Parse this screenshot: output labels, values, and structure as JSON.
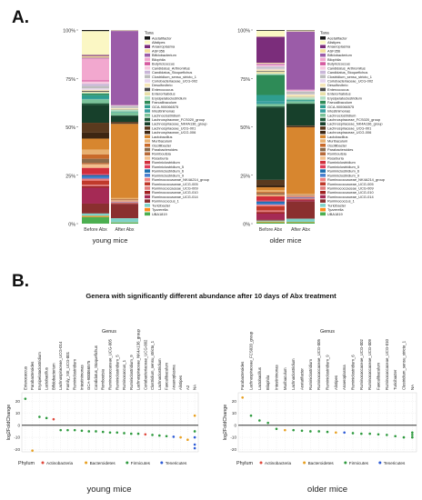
{
  "panel_a": {
    "label": "A.",
    "legend_title": "Taxa",
    "taxa": [
      "Acetatifactor",
      "Alistipes",
      "Anaeroplasma",
      "ASF356",
      "Bifidobacterium",
      "Bilophila",
      "Butyricicoccus",
      "Candidatus_Arthromitus",
      "Candidatus_Stoquefichus",
      "Clostridium_sensu_stricto_1",
      "Coriobacteriaceae_UCG-002",
      "Desulfovibrio",
      "Enterococcus",
      "Enterorhabdus",
      "Erysipelatoclostridium",
      "Faecalibaculum",
      "GCA-900066575",
      "Intestinimonas",
      "Lachnoclostridium",
      "Lachnospiraceae_FCS020_group",
      "Lachnospiraceae_NK4A136_group",
      "Lachnospiraceae_UCG-001",
      "Lachnospiraceae_UCG-006",
      "Lactobacillus",
      "Muribaculum",
      "Oscillibacter",
      "Parabacteroides",
      "Romboutsia",
      "Roseburia",
      "Ruminiclostridium",
      "Ruminiclostridium_5",
      "Ruminiclostridium_6",
      "Ruminiclostridium_9",
      "Ruminococcaceae_NK4A214_group",
      "Ruminococcaceae_UCG-005",
      "Ruminococcaceae_UCG-009",
      "Ruminococcaceae_UCG-010",
      "Ruminococcaceae_UCG-014",
      "Ruminococcus_1",
      "Turicibacter",
      "Tyzzerella",
      "UBA1819"
    ],
    "colors": [
      "#1a1a1a",
      "#fbf7c4",
      "#7b2d7b",
      "#f3df9a",
      "#9b5ca8",
      "#f2a8cf",
      "#d65aa0",
      "#f7c9e0",
      "#c9b7d8",
      "#bdbdbd",
      "#e7d6ef",
      "#f5e6b8",
      "#4a4a4a",
      "#e8e0a8",
      "#b2dfc5",
      "#2e8b57",
      "#2f9e8f",
      "#3aa0a0",
      "#7bc39a",
      "#1f5a3a",
      "#17402b",
      "#5a3a1e",
      "#3d2612",
      "#d7862f",
      "#e8b070",
      "#c96a2a",
      "#8b6a4a",
      "#b86b3a",
      "#f3c08e",
      "#d12e3b",
      "#e03c5a",
      "#1b6fb0",
      "#4a7fcf",
      "#f08080",
      "#c0392b",
      "#e07b7b",
      "#a02020",
      "#a52a55",
      "#8a2f2f",
      "#7fd3c8",
      "#ff8c1a",
      "#4caf50"
    ],
    "charts": [
      {
        "group_label": "young mice",
        "yticks": [
          "0%",
          "25%",
          "50%",
          "75%",
          "100%"
        ],
        "bars": [
          {
            "label": "Before Abx",
            "values": [
              0.6,
              12,
              0.6,
              0.8,
              0.4,
              11,
              0.6,
              1.2,
              1.1,
              1.2,
              0.7,
              0.6,
              0.4,
              0.5,
              0.4,
              0.8,
              1.5,
              0.6,
              2.0,
              0.8,
              9.0,
              5.0,
              3.0,
              5.5,
              2.5,
              2.2,
              2.0,
              0.8,
              1.8,
              3.0,
              0.6,
              1.0,
              0.8,
              1.0,
              2.0,
              0.8,
              0.8,
              8.0,
              5.0,
              1.2,
              0.6,
              3.3
            ]
          },
          {
            "label": "After Abx",
            "values": [
              0.1,
              0.2,
              0.1,
              0.1,
              36.0,
              0.1,
              0.1,
              0.1,
              0.1,
              1.0,
              0.1,
              0.5,
              0.1,
              0.2,
              0.8,
              0.1,
              0.2,
              0.1,
              1.5,
              0.1,
              3.0,
              0.5,
              0.5,
              36.0,
              0.5,
              0.3,
              0.2,
              0.2,
              0.5,
              0.1,
              0.1,
              0.1,
              0.1,
              0.2,
              0.2,
              0.1,
              0.1,
              0.1,
              7.0,
              2.0,
              0.1,
              0.5
            ]
          }
        ]
      },
      {
        "group_label": "older mice",
        "yticks": [
          "0%",
          "25%",
          "50%",
          "75%",
          "100%"
        ],
        "bars": [
          {
            "label": "Before Abx",
            "values": [
              0.4,
              3.0,
              13.0,
              0.4,
              0.2,
              0.3,
              0.3,
              0.6,
              0.5,
              0.6,
              0.4,
              0.8,
              0.3,
              1.0,
              0.6,
              10.0,
              3.0,
              1.5,
              1.2,
              0.6,
              36.0,
              2.5,
              1.2,
              1.5,
              0.8,
              0.6,
              0.6,
              0.4,
              0.6,
              2.0,
              0.6,
              0.8,
              0.8,
              0.8,
              2.0,
              0.8,
              0.8,
              3.0,
              0.5,
              0.5,
              0.4,
              0.6
            ]
          },
          {
            "label": "After Abx",
            "values": [
              0.2,
              0.4,
              0.1,
              0.1,
              27.0,
              0.2,
              0.2,
              0.3,
              0.1,
              1.2,
              0.2,
              1.0,
              0.1,
              0.3,
              1.0,
              0.2,
              0.4,
              0.2,
              1.0,
              0.2,
              10.0,
              0.3,
              0.5,
              31.0,
              0.4,
              0.2,
              0.2,
              0.2,
              0.3,
              0.2,
              0.2,
              0.2,
              0.2,
              0.2,
              0.3,
              0.2,
              0.2,
              0.5,
              8.0,
              1.5,
              0.2,
              0.6
            ]
          }
        ]
      }
    ]
  },
  "panel_b": {
    "label": "B.",
    "title": "Genera with significantly different abundance after 10 days of Abx treatment",
    "genus_title": "Genus",
    "ylabel": "log2FoldChange",
    "phylum_title": "Phylum",
    "phyla": [
      {
        "name": "Actinobacteria",
        "color": "#e0483c"
      },
      {
        "name": "Bacteroidetes",
        "color": "#e8a020"
      },
      {
        "name": "Firmicutes",
        "color": "#2e9a3e"
      },
      {
        "name": "Tenericutes",
        "color": "#2d5bd6"
      }
    ],
    "charts": [
      {
        "group_label": "young mice",
        "yticks": [
          "-20",
          "-10",
          "0",
          "10",
          "20"
        ],
        "ylim": [
          -22,
          27
        ],
        "genera": [
          "Enterococcus",
          "Parabacteroides",
          "Erysipelatoclostridium",
          "Lactobacillus",
          "Bifidobacterium",
          "Lachnospiraceae_UCG-014",
          "Family_XIII_UCG-001",
          "Ruminiclostridium",
          "Intestinimonas",
          "GCA-900066575",
          "Candidatus_Stoquefichus",
          "Romboutsia",
          "Ruminococcaceae_UCG-005",
          "Ruminiclostridium_5",
          "Ruminococcus_1",
          "Ruminiclostridium_9",
          "Lachnospiraceae_NK4A136_group",
          "Coriobacteriaceae_UCG-002",
          "Clostridium_sensu_stricto_1",
          "Lachnoclostridium",
          "Faecalibaculum",
          "Anaeroplasma",
          "Alistipes",
          "A2",
          "NA"
        ],
        "points": [
          {
            "genus_index": 0,
            "value": 22,
            "phylum": 2
          },
          {
            "genus_index": 1,
            "value": -21,
            "phylum": 1
          },
          {
            "genus_index": 2,
            "value": 7,
            "phylum": 2
          },
          {
            "genus_index": 3,
            "value": 6,
            "phylum": 2
          },
          {
            "genus_index": 4,
            "value": 5,
            "phylum": 0
          },
          {
            "genus_index": 5,
            "value": -4,
            "phylum": 2
          },
          {
            "genus_index": 6,
            "value": -4,
            "phylum": 2
          },
          {
            "genus_index": 7,
            "value": -4,
            "phylum": 2
          },
          {
            "genus_index": 8,
            "value": -4.5,
            "phylum": 2
          },
          {
            "genus_index": 9,
            "value": -5,
            "phylum": 2
          },
          {
            "genus_index": 10,
            "value": -5,
            "phylum": 2
          },
          {
            "genus_index": 11,
            "value": -5.5,
            "phylum": 2
          },
          {
            "genus_index": 12,
            "value": -6,
            "phylum": 2
          },
          {
            "genus_index": 13,
            "value": -6,
            "phylum": 2
          },
          {
            "genus_index": 14,
            "value": -6.5,
            "phylum": 2
          },
          {
            "genus_index": 15,
            "value": -7,
            "phylum": 2
          },
          {
            "genus_index": 16,
            "value": -7,
            "phylum": 2
          },
          {
            "genus_index": 17,
            "value": -7.5,
            "phylum": 0
          },
          {
            "genus_index": 18,
            "value": -8,
            "phylum": 2
          },
          {
            "genus_index": 19,
            "value": -8.5,
            "phylum": 2
          },
          {
            "genus_index": 20,
            "value": -9,
            "phylum": 2
          },
          {
            "genus_index": 21,
            "value": -9.5,
            "phylum": 3
          },
          {
            "genus_index": 22,
            "value": -10,
            "phylum": 1
          },
          {
            "genus_index": 23,
            "value": -12,
            "phylum": 1
          },
          {
            "genus_index": 24,
            "value": 8,
            "phylum": 1
          },
          {
            "genus_index": 24,
            "value": -5,
            "phylum": 2
          },
          {
            "genus_index": 24,
            "value": -10,
            "phylum": 3
          },
          {
            "genus_index": 24,
            "value": -16,
            "phylum": 3
          },
          {
            "genus_index": 24,
            "value": -19,
            "phylum": 3
          }
        ]
      },
      {
        "group_label": "older mice",
        "yticks": [
          "-20",
          "-10",
          "0",
          "10",
          "20"
        ],
        "ylim": [
          -22,
          27
        ],
        "genera": [
          "Parabacteroides",
          "Lachnospiraceae_FCS020_group",
          "Lactobacillus",
          "Bilophila",
          "Intestinimonas",
          "Muribaculum",
          "Lachnoclostridium",
          "Acetatifactor",
          "Ruminiclostridium",
          "Ruminococcaceae_UCG-005",
          "Ruminiclostridium_9",
          "Alistipes",
          "Anaeroplasma",
          "Ruminiclostridium_6",
          "Ruminococcaceae_UCG-002",
          "Ruminococcaceae_UCG-009",
          "Faecalibaculum",
          "Ruminococcaceae_UCG-010",
          "Turicibacter",
          "Clostridium_sensu_stricto_1",
          "NA"
        ],
        "points": [
          {
            "genus_index": 0,
            "value": 23,
            "phylum": 1
          },
          {
            "genus_index": 1,
            "value": 8,
            "phylum": 2
          },
          {
            "genus_index": 2,
            "value": 4,
            "phylum": 2
          },
          {
            "genus_index": 3,
            "value": 2,
            "phylum": 2
          },
          {
            "genus_index": 4,
            "value": -3,
            "phylum": 2
          },
          {
            "genus_index": 5,
            "value": -4,
            "phylum": 1
          },
          {
            "genus_index": 6,
            "value": -4,
            "phylum": 2
          },
          {
            "genus_index": 7,
            "value": -4.5,
            "phylum": 2
          },
          {
            "genus_index": 8,
            "value": -5,
            "phylum": 2
          },
          {
            "genus_index": 9,
            "value": -5,
            "phylum": 2
          },
          {
            "genus_index": 10,
            "value": -5.5,
            "phylum": 2
          },
          {
            "genus_index": 11,
            "value": -6,
            "phylum": 1
          },
          {
            "genus_index": 12,
            "value": -6,
            "phylum": 3
          },
          {
            "genus_index": 13,
            "value": -6.5,
            "phylum": 2
          },
          {
            "genus_index": 14,
            "value": -7,
            "phylum": 2
          },
          {
            "genus_index": 15,
            "value": -7,
            "phylum": 2
          },
          {
            "genus_index": 16,
            "value": -7.5,
            "phylum": 2
          },
          {
            "genus_index": 17,
            "value": -8,
            "phylum": 2
          },
          {
            "genus_index": 18,
            "value": -9,
            "phylum": 2
          },
          {
            "genus_index": 19,
            "value": -10,
            "phylum": 2
          },
          {
            "genus_index": 20,
            "value": -6,
            "phylum": 2
          },
          {
            "genus_index": 20,
            "value": -8,
            "phylum": 2
          },
          {
            "genus_index": 20,
            "value": -10,
            "phylum": 2
          }
        ]
      }
    ]
  },
  "chart_data": [
    {
      "type": "bar",
      "stacked": true,
      "categories": [
        "Before Abx",
        "After Abx"
      ],
      "xlabel": "young mice",
      "ylim": [
        0,
        100
      ],
      "series_names": "panel_a.taxa",
      "values_source": "panel_a.charts.0.bars"
    },
    {
      "type": "bar",
      "stacked": true,
      "categories": [
        "Before Abx",
        "After Abx"
      ],
      "xlabel": "older mice",
      "ylim": [
        0,
        100
      ],
      "series_names": "panel_a.taxa",
      "values_source": "panel_a.charts.1.bars"
    },
    {
      "type": "scatter",
      "title": "Genera with significantly different abundance after 10 days of Abx treatment",
      "xlabel": "young mice",
      "ylabel": "log2FoldChange",
      "ylim": [
        -22,
        27
      ],
      "points_source": "panel_b.charts.0.points"
    },
    {
      "type": "scatter",
      "xlabel": "older mice",
      "ylabel": "log2FoldChange",
      "ylim": [
        -22,
        27
      ],
      "points_source": "panel_b.charts.1.points"
    }
  ]
}
